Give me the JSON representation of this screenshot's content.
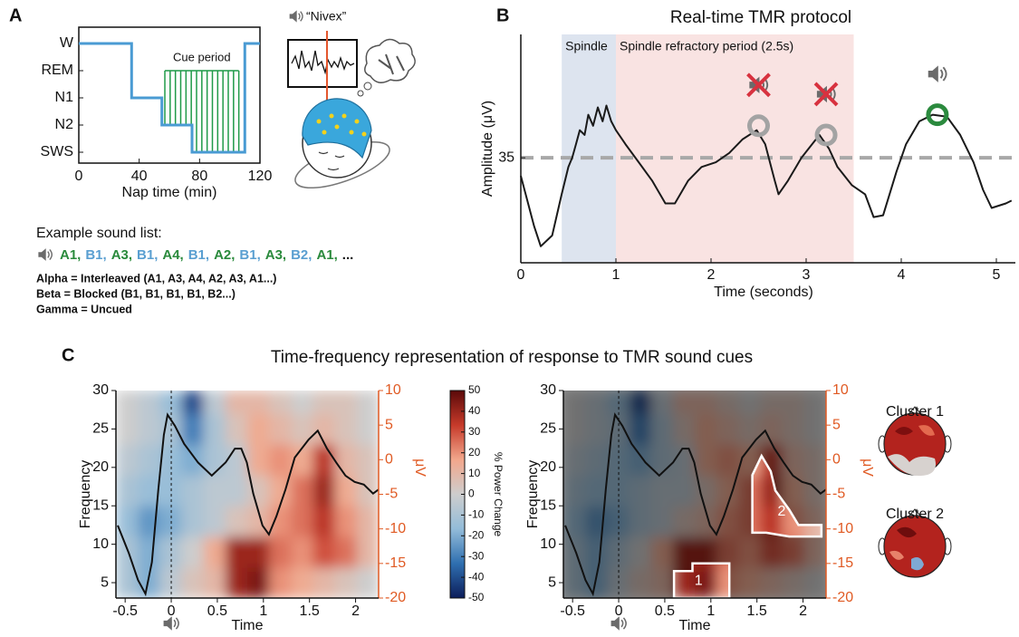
{
  "illustration": {
    "cue_word": "“Nivex”"
  },
  "sound_list": {
    "label": "Example sound list:",
    "items": [
      {
        "text": "A1,",
        "color": "#2a8a3c"
      },
      {
        "text": "B1,",
        "color": "#5a9fd1"
      },
      {
        "text": "A3,",
        "color": "#2a8a3c"
      },
      {
        "text": "B1,",
        "color": "#5a9fd1"
      },
      {
        "text": "A4,",
        "color": "#2a8a3c"
      },
      {
        "text": "B1,",
        "color": "#5a9fd1"
      },
      {
        "text": "A2,",
        "color": "#2a8a3c"
      },
      {
        "text": "B1,",
        "color": "#5a9fd1"
      },
      {
        "text": "A3,",
        "color": "#2a8a3c"
      },
      {
        "text": "B2,",
        "color": "#5a9fd1"
      },
      {
        "text": "A1,",
        "color": "#2a8a3c"
      },
      {
        "text": "...",
        "color": "#111111"
      }
    ],
    "legend": [
      {
        "text": "Alpha = Interleaved (A1, A3, A4, A2, A3, A1...)",
        "color": "#2a8a3c"
      },
      {
        "text": "Beta = Blocked (B1, B1, B1, B1, B2...)",
        "color": "#5a9fd1"
      },
      {
        "text": "Gamma = Uncued",
        "color": "#9a9a9a"
      }
    ]
  },
  "panel_c": {
    "label": "C",
    "title": "Time-frequency representation of response to TMR sound cues"
  },
  "chart_data": [
    {
      "type": "line",
      "panel_label": "A",
      "xlabel": "Nap time (min)",
      "x": [
        0,
        35,
        35,
        55,
        55,
        75,
        75,
        110,
        110,
        120
      ],
      "series": [
        {
          "values": [
            4,
            4,
            2,
            2,
            1,
            1,
            0,
            0,
            4,
            4
          ],
          "color": "#4a9bd3"
        }
      ],
      "xlim": [
        0,
        120
      ],
      "xticks": [
        0,
        40,
        80,
        120
      ],
      "ylim": [
        -0.4,
        4.6
      ],
      "yticks": [
        {
          "value": 4,
          "label": "W"
        },
        {
          "value": 3,
          "label": "REM"
        },
        {
          "value": 2,
          "label": "N1"
        },
        {
          "value": 1,
          "label": "N2"
        },
        {
          "value": 0,
          "label": "SWS"
        }
      ],
      "annotation": "Cue period",
      "cue_x": [
        57,
        60.5,
        64,
        67.5,
        71,
        74.5,
        78,
        81.5,
        85,
        88.5,
        92,
        95.5,
        99,
        102.5,
        106
      ],
      "cue_color": "#1f9a48"
    },
    {
      "type": "line",
      "panel_label": "B",
      "title": "Real-time TMR protocol",
      "xlabel": "Time (seconds)",
      "ylabel": "Amplitude (μV)",
      "x": [
        0,
        0.14,
        0.21,
        0.33,
        0.43,
        0.5,
        0.54,
        0.58,
        0.62,
        0.67,
        0.71,
        0.76,
        0.81,
        0.86,
        0.9,
        0.95,
        1.0,
        1.1,
        1.24,
        1.38,
        1.52,
        1.62,
        1.76,
        1.9,
        2.05,
        2.19,
        2.33,
        2.48,
        2.57,
        2.67,
        2.71,
        2.81,
        2.95,
        3.14,
        3.24,
        3.33,
        3.48,
        3.62,
        3.71,
        3.81,
        3.95,
        4.05,
        4.19,
        4.33,
        4.48,
        4.62,
        4.76,
        4.86,
        4.95,
        5.1,
        5.16
      ],
      "series": [
        {
          "values": [
            28.1,
            8.9,
            1.3,
            5.4,
            21.1,
            31.5,
            35,
            40.2,
            45.5,
            43.7,
            51.4,
            47.2,
            54.2,
            48.9,
            54.9,
            48.9,
            45.5,
            40.2,
            33.3,
            26.3,
            17.6,
            17.6,
            26.3,
            31.5,
            33.3,
            36.8,
            42,
            45.5,
            40.2,
            26.3,
            21.1,
            26.3,
            35,
            43.7,
            38.5,
            31.5,
            24.6,
            21.1,
            12.4,
            13.1,
            29.8,
            40.2,
            48.9,
            51.4,
            50.7,
            43.7,
            33.3,
            22.8,
            15.9,
            17.6,
            18.7
          ],
          "color": "#1a1a1a"
        }
      ],
      "xlim": [
        0,
        5.2
      ],
      "xticks": [
        0,
        1,
        2,
        3,
        4,
        5
      ],
      "ylim": [
        -5,
        82
      ],
      "yticks": [
        35
      ],
      "threshold": 35,
      "regions": [
        {
          "label": "Spindle",
          "x": [
            0.43,
            1.0
          ],
          "color": "#dde4ef",
          "text_color": "#3e6db3"
        },
        {
          "label": "Spindle refractory period (2.5s)",
          "x": [
            1.0,
            3.5
          ],
          "color": "#f9e3e2",
          "text_color": "#d8323f"
        }
      ],
      "detections": [
        {
          "x": 2.5,
          "y": 47.2,
          "cued": false
        },
        {
          "x": 3.21,
          "y": 43.7,
          "cued": false
        },
        {
          "x": 4.38,
          "y": 51.4,
          "cued": true
        }
      ],
      "marker_colors": {
        "uncued": "#a3a3a3",
        "cued": "#2b8a3e"
      }
    },
    {
      "type": "heatmap",
      "xlabel": "Time",
      "ylabel": "Frequency",
      "y2label": "μV",
      "time_bins": [
        -0.6,
        -0.3625,
        -0.125,
        0.1125,
        0.35,
        0.5875,
        0.825,
        1.0625,
        1.3,
        1.5375,
        1.775,
        2.0125,
        2.25
      ],
      "freq_bins": [
        3,
        7,
        11,
        15,
        19,
        23,
        27,
        30
      ],
      "values": [
        [
          -10,
          -20,
          -5,
          5,
          10,
          40,
          45,
          20,
          15,
          10,
          5,
          0
        ],
        [
          -10,
          -20,
          -10,
          0,
          15,
          40,
          40,
          25,
          20,
          30,
          25,
          10
        ],
        [
          -15,
          -25,
          -20,
          -10,
          -5,
          5,
          10,
          20,
          25,
          35,
          20,
          10
        ],
        [
          -10,
          -15,
          -15,
          -10,
          -5,
          -5,
          5,
          15,
          25,
          40,
          15,
          5
        ],
        [
          -5,
          -10,
          -15,
          -20,
          -10,
          -5,
          15,
          20,
          15,
          35,
          10,
          5
        ],
        [
          0,
          -5,
          -10,
          -30,
          -10,
          5,
          15,
          10,
          5,
          10,
          5,
          0
        ],
        [
          0,
          -5,
          -15,
          -40,
          -5,
          10,
          10,
          5,
          0,
          5,
          5,
          0
        ]
      ],
      "xlim": [
        -0.6,
        2.25
      ],
      "xticks": [
        -0.5,
        0,
        0.5,
        1,
        1.5,
        2
      ],
      "ylim": [
        3,
        30
      ],
      "yticks": [
        5,
        10,
        15,
        20,
        25,
        30
      ],
      "y2lim": [
        -20,
        10
      ],
      "y2ticks": [
        -20,
        -15,
        -10,
        -5,
        0,
        5,
        10
      ],
      "series": [
        {
          "x": [
            -0.58,
            -0.46,
            -0.36,
            -0.28,
            -0.21,
            -0.14,
            -0.08,
            -0.04,
            0.04,
            0.14,
            0.29,
            0.44,
            0.59,
            0.69,
            0.76,
            0.82,
            0.89,
            0.99,
            1.06,
            1.14,
            1.24,
            1.34,
            1.49,
            1.59,
            1.69,
            1.79,
            1.89,
            1.99,
            2.09,
            2.19,
            2.25
          ],
          "values": [
            -9.5,
            -13.5,
            -17.4,
            -19.4,
            -14.8,
            -4.3,
            3.6,
            6.5,
            4.9,
            2.3,
            -0.4,
            -2.3,
            -0.4,
            1.6,
            1.6,
            -0.4,
            -4.9,
            -9.5,
            -10.8,
            -8.2,
            -4.3,
            0.3,
            2.9,
            4.2,
            1.6,
            -0.4,
            -2.3,
            -3.2,
            -3.6,
            -4.9,
            -4.3
          ],
          "color": "#111111",
          "axis": "y2"
        }
      ],
      "event_line": 0,
      "y2_color": "#e05a23",
      "clim": [
        -50,
        50
      ],
      "colormap": [
        "#0c1d5a",
        "#2f6fb0",
        "#93bcd9",
        "#cdcdcd",
        "#f2a78c",
        "#c63a2a",
        "#5a0909"
      ],
      "colorbar": {
        "ticks": [
          -50,
          -40,
          -30,
          -20,
          -10,
          0,
          10,
          20,
          30,
          40,
          50
        ],
        "label": "% Power Change"
      }
    },
    {
      "type": "heatmap",
      "xlabel": "Time",
      "ylabel": "Frequency",
      "y2label": "μV",
      "time_bins": [
        -0.6,
        -0.3625,
        -0.125,
        0.1125,
        0.35,
        0.5875,
        0.825,
        1.0625,
        1.3,
        1.5375,
        1.775,
        2.0125,
        2.25
      ],
      "freq_bins": [
        3,
        7,
        11,
        15,
        19,
        23,
        27,
        30
      ],
      "values": [
        [
          -10,
          -20,
          -5,
          5,
          10,
          40,
          45,
          20,
          15,
          10,
          5,
          0
        ],
        [
          -10,
          -20,
          -10,
          0,
          15,
          40,
          40,
          25,
          20,
          30,
          25,
          10
        ],
        [
          -15,
          -25,
          -20,
          -10,
          -5,
          5,
          10,
          20,
          25,
          35,
          20,
          10
        ],
        [
          -10,
          -15,
          -15,
          -10,
          -5,
          -5,
          5,
          15,
          25,
          40,
          15,
          5
        ],
        [
          -5,
          -10,
          -15,
          -20,
          -10,
          -5,
          15,
          20,
          15,
          35,
          10,
          5
        ],
        [
          0,
          -5,
          -10,
          -30,
          -10,
          5,
          15,
          10,
          5,
          10,
          5,
          0
        ],
        [
          0,
          -5,
          -15,
          -40,
          -5,
          10,
          10,
          5,
          0,
          5,
          5,
          0
        ]
      ],
      "xlim": [
        -0.6,
        2.25
      ],
      "xticks": [
        -0.5,
        0,
        0.5,
        1,
        1.5,
        2
      ],
      "ylim": [
        3,
        30
      ],
      "yticks": [
        5,
        10,
        15,
        20,
        25,
        30
      ],
      "y2lim": [
        -20,
        10
      ],
      "y2ticks": [
        -20,
        -15,
        -10,
        -5,
        0,
        5,
        10
      ],
      "series": [
        {
          "x": [
            -0.58,
            -0.46,
            -0.36,
            -0.28,
            -0.21,
            -0.14,
            -0.08,
            -0.04,
            0.04,
            0.14,
            0.29,
            0.44,
            0.59,
            0.69,
            0.76,
            0.82,
            0.89,
            0.99,
            1.06,
            1.14,
            1.24,
            1.34,
            1.49,
            1.59,
            1.69,
            1.79,
            1.89,
            1.99,
            2.09,
            2.19,
            2.25
          ],
          "values": [
            -9.5,
            -13.5,
            -17.4,
            -19.4,
            -14.8,
            -4.3,
            3.6,
            6.5,
            4.9,
            2.3,
            -0.4,
            -2.3,
            -0.4,
            1.6,
            1.6,
            -0.4,
            -4.9,
            -9.5,
            -10.8,
            -8.2,
            -4.3,
            0.3,
            2.9,
            4.2,
            1.6,
            -0.4,
            -2.3,
            -3.2,
            -3.6,
            -4.9,
            -4.3
          ],
          "color": "#111111",
          "axis": "y2"
        }
      ],
      "event_line": 0,
      "y2_color": "#e05a23",
      "clim": [
        -50,
        50
      ],
      "colormap": [
        "#0c1d5a",
        "#2f6fb0",
        "#93bcd9",
        "#cdcdcd",
        "#f2a78c",
        "#c63a2a",
        "#5a0909"
      ],
      "clusters": [
        {
          "label": "1",
          "points": [
            [
              0.6,
              3
            ],
            [
              0.6,
              6.5
            ],
            [
              0.8,
              6.5
            ],
            [
              0.8,
              7.5
            ],
            [
              1.2,
              7.5
            ],
            [
              1.2,
              3
            ]
          ]
        },
        {
          "label": "2",
          "points": [
            [
              1.45,
              11.5
            ],
            [
              1.45,
              19
            ],
            [
              1.55,
              21.5
            ],
            [
              1.65,
              19.5
            ],
            [
              1.7,
              17
            ],
            [
              1.85,
              14.5
            ],
            [
              1.95,
              12.5
            ],
            [
              2.2,
              12.5
            ],
            [
              2.2,
              11
            ],
            [
              1.85,
              11
            ],
            [
              1.6,
              11.5
            ]
          ]
        }
      ],
      "topoplots": [
        {
          "title": "Cluster 1"
        },
        {
          "title": "Cluster 2"
        }
      ]
    }
  ]
}
